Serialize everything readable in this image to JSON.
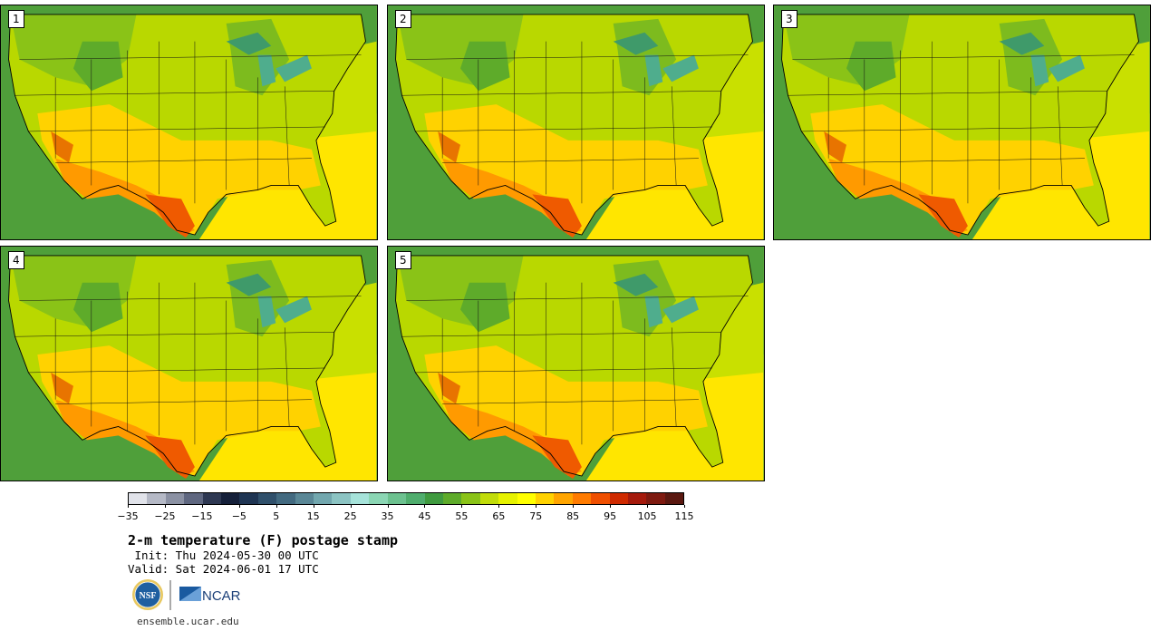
{
  "panels": [
    {
      "label": "1"
    },
    {
      "label": "2"
    },
    {
      "label": "3"
    },
    {
      "label": "4"
    },
    {
      "label": "5"
    }
  ],
  "colorbar": {
    "colors": [
      "#e1e3ea",
      "#b5b9c6",
      "#8b91a3",
      "#5f6780",
      "#2e3852",
      "#15203a",
      "#1f3553",
      "#30506b",
      "#436a80",
      "#5a8796",
      "#72a7ae",
      "#8cc4c3",
      "#a6e3da",
      "#8bd6b4",
      "#6cc18f",
      "#4fad6d",
      "#3f9a3f",
      "#5eab2a",
      "#8ac317",
      "#c1dc0a",
      "#e6f200",
      "#ffff00",
      "#ffd200",
      "#ffa500",
      "#ff7b00",
      "#ef4f00",
      "#cf2a00",
      "#a51a0c",
      "#7e1a10",
      "#5a1810"
    ],
    "tick_labels": [
      "−35",
      "−25",
      "−15",
      "−5",
      "5",
      "15",
      "25",
      "35",
      "45",
      "55",
      "65",
      "75",
      "85",
      "95",
      "105",
      "115"
    ]
  },
  "title": "2-m temperature (F) postage stamp",
  "init": " Init: Thu 2024-05-30 00 UTC",
  "valid": "Valid: Sat 2024-06-01 17 UTC",
  "logos": {
    "nsf": "NSF",
    "ncar": "NCAR"
  },
  "url": "ensemble.ucar.edu"
}
